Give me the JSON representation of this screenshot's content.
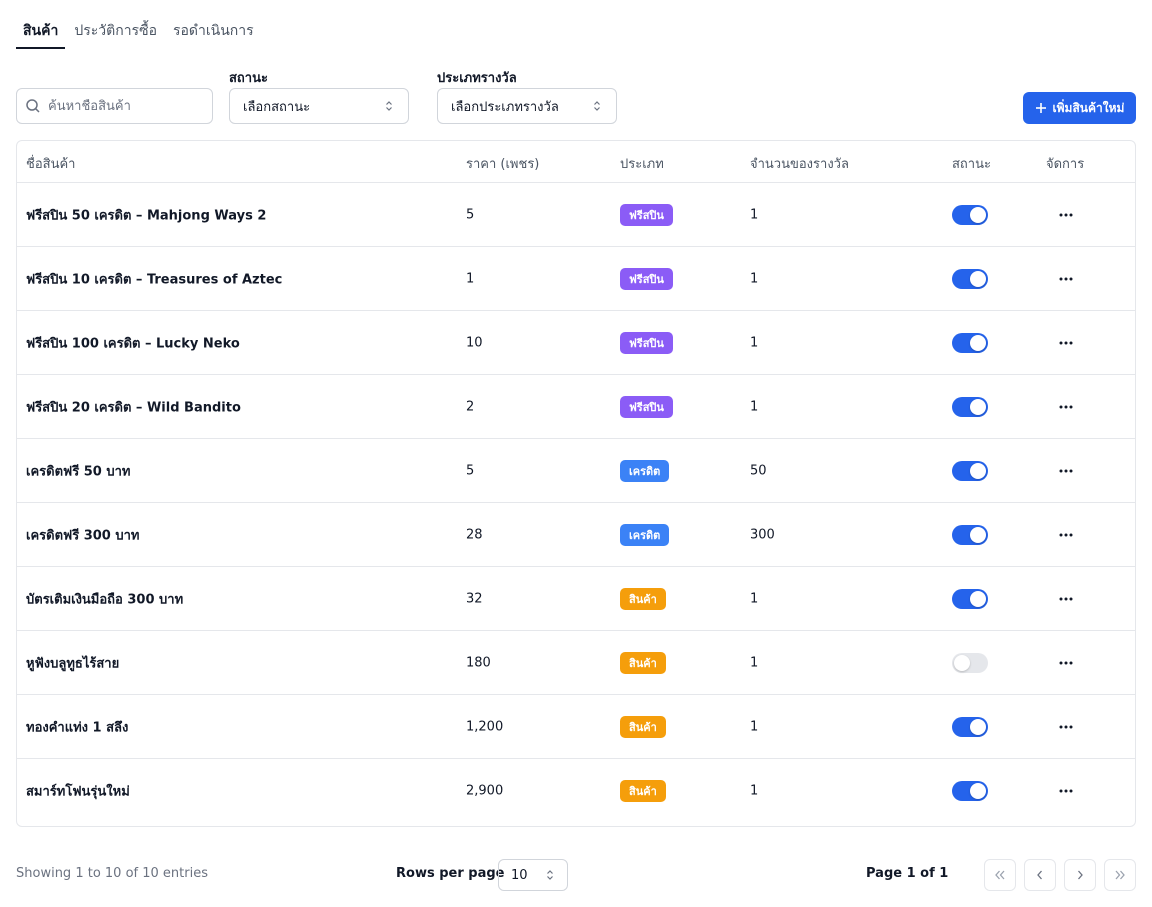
{
  "tabs": [
    {
      "label": "สินค้า",
      "active": true
    },
    {
      "label": "ประวัติการซื้อ",
      "active": false
    },
    {
      "label": "รอดำเนินการ",
      "active": false
    }
  ],
  "filters": {
    "search_placeholder": "ค้นหาชื่อสินค้า",
    "status_label": "สถานะ",
    "status_value": "เลือกสถานะ",
    "type_label": "ประเภทรางวัล",
    "type_value": "เลือกประเภทรางวัล"
  },
  "add_button_label": "เพิ่มสินค้าใหม่",
  "table": {
    "columns": [
      "ชื่อสินค้า",
      "ราคา (เพชร)",
      "ประเภท",
      "จำนวนของรางวัล",
      "สถานะ",
      "จัดการ"
    ],
    "rows": [
      {
        "name": "ฟรีสปิน 50 เครดิต – Mahjong Ways 2",
        "price": "5",
        "type": "ฟรีสปิน",
        "type_color": "#8b5cf6",
        "qty": "1",
        "active": true
      },
      {
        "name": "ฟรีสปิน 10 เครดิต – Treasures of Aztec",
        "price": "1",
        "type": "ฟรีสปิน",
        "type_color": "#8b5cf6",
        "qty": "1",
        "active": true
      },
      {
        "name": "ฟรีสปิน 100 เครดิต – Lucky Neko",
        "price": "10",
        "type": "ฟรีสปิน",
        "type_color": "#8b5cf6",
        "qty": "1",
        "active": true
      },
      {
        "name": "ฟรีสปิน 20 เครดิต – Wild Bandito",
        "price": "2",
        "type": "ฟรีสปิน",
        "type_color": "#8b5cf6",
        "qty": "1",
        "active": true
      },
      {
        "name": "เครดิตฟรี 50 บาท",
        "price": "5",
        "type": "เครดิต",
        "type_color": "#3b82f6",
        "qty": "50",
        "active": true
      },
      {
        "name": "เครดิตฟรี 300 บาท",
        "price": "28",
        "type": "เครดิต",
        "type_color": "#3b82f6",
        "qty": "300",
        "active": true
      },
      {
        "name": "บัตรเติมเงินมือถือ 300 บาท",
        "price": "32",
        "type": "สินค้า",
        "type_color": "#f59e0b",
        "qty": "1",
        "active": true
      },
      {
        "name": "หูฟังบลูทูธไร้สาย",
        "price": "180",
        "type": "สินค้า",
        "type_color": "#f59e0b",
        "qty": "1",
        "active": false
      },
      {
        "name": "ทองคำแท่ง 1 สลึง",
        "price": "1,200",
        "type": "สินค้า",
        "type_color": "#f59e0b",
        "qty": "1",
        "active": true
      },
      {
        "name": "สมาร์ทโฟนรุ่นใหม่",
        "price": "2,900",
        "type": "สินค้า",
        "type_color": "#f59e0b",
        "qty": "1",
        "active": true
      }
    ]
  },
  "footer": {
    "showing": "Showing 1 to 10 of 10 entries",
    "rows_per_page_label": "Rows per page",
    "rows_per_page_value": "10",
    "page_info": "Page 1 of 1"
  },
  "colors": {
    "accent": "#2563eb",
    "freespin": "#8b5cf6",
    "credit": "#3b82f6",
    "product": "#f59e0b"
  }
}
